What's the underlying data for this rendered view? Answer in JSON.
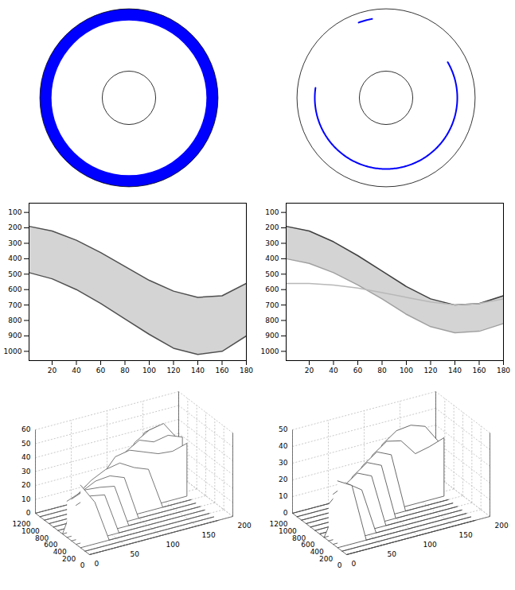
{
  "chart_data": [
    {
      "type": "rings",
      "tick_labels": false,
      "xlim": [
        -1.05,
        1.05
      ],
      "ylim": [
        -1.05,
        1.05
      ],
      "bands": [
        {
          "r_inner": 0.87,
          "r_outer": 1.0,
          "color": "#0000ff"
        }
      ],
      "circles": [
        {
          "r": 1.0,
          "color": "#000000"
        },
        {
          "r": 0.3,
          "color": "#000000"
        }
      ]
    },
    {
      "type": "rings",
      "tick_labels": false,
      "xlim": [
        -1.05,
        1.05
      ],
      "ylim": [
        -1.05,
        1.05
      ],
      "arcs": [
        {
          "r": 0.8,
          "start": 172,
          "end": 390,
          "color": "#0000ff"
        },
        {
          "r": 0.9,
          "start": 100,
          "end": 110,
          "color": "#0000ff"
        }
      ],
      "circles": [
        {
          "r": 1.0,
          "color": "#000000"
        },
        {
          "r": 0.3,
          "color": "#000000"
        }
      ]
    },
    {
      "type": "band",
      "color": "#d4d4d4",
      "xlim": [
        1,
        180
      ],
      "ylim": [
        1060,
        40
      ],
      "xticks": [
        20,
        40,
        60,
        80,
        100,
        120,
        140,
        160,
        180
      ],
      "yticks": [
        100,
        200,
        300,
        400,
        500,
        600,
        700,
        800,
        900,
        1000
      ],
      "x": [
        1,
        20,
        40,
        60,
        80,
        100,
        120,
        140,
        160,
        180
      ],
      "series": [
        {
          "color": "#505050",
          "values": [
            190,
            220,
            280,
            360,
            450,
            540,
            610,
            650,
            640,
            560
          ]
        },
        {
          "color": "#505050",
          "values": [
            490,
            530,
            600,
            690,
            790,
            890,
            980,
            1020,
            1000,
            900
          ]
        }
      ]
    },
    {
      "type": "band",
      "color": "#d4d4d4",
      "xlim": [
        1,
        180
      ],
      "ylim": [
        1060,
        40
      ],
      "xticks": [
        20,
        40,
        60,
        80,
        100,
        120,
        140,
        160,
        180
      ],
      "yticks": [
        100,
        200,
        300,
        400,
        500,
        600,
        700,
        800,
        900,
        1000
      ],
      "x": [
        1,
        20,
        40,
        60,
        80,
        100,
        120,
        140,
        160,
        180
      ],
      "series": [
        {
          "color": "#404040",
          "values": [
            190,
            220,
            290,
            380,
            480,
            580,
            660,
            700,
            690,
            640
          ]
        },
        {
          "color": "#a0a0a0",
          "values": [
            400,
            430,
            490,
            570,
            660,
            760,
            840,
            880,
            870,
            820
          ]
        },
        {
          "color": "#b8b8b8",
          "values": [
            560,
            560,
            570,
            590,
            620,
            650,
            680,
            700,
            690,
            660
          ]
        }
      ]
    },
    {
      "type": "surface",
      "grid": true,
      "color": "#555555",
      "xlim": [
        0,
        200
      ],
      "xticks": [
        0,
        50,
        100,
        150,
        200
      ],
      "ylim": [
        0,
        1200
      ],
      "yticks": [
        0,
        200,
        400,
        600,
        800,
        1000,
        1200
      ],
      "zlim": [
        0,
        60
      ],
      "zticks": [
        0,
        10,
        20,
        30,
        40,
        50,
        60
      ],
      "x": [
        0,
        20,
        40,
        60,
        80,
        100,
        120,
        140,
        160,
        180
      ],
      "y": [
        0,
        100,
        200,
        300,
        400,
        500,
        600,
        700,
        800,
        900,
        1000,
        1100,
        1200
      ],
      "z": [
        [
          0,
          0,
          0,
          0,
          0,
          0,
          0,
          0,
          0,
          0
        ],
        [
          0,
          0,
          0,
          0,
          0,
          0,
          0,
          0,
          0,
          0
        ],
        [
          45,
          30,
          0,
          0,
          0,
          0,
          0,
          0,
          0,
          0
        ],
        [
          28,
          32,
          30,
          0,
          0,
          0,
          0,
          0,
          0,
          0
        ],
        [
          30,
          34,
          33,
          31,
          0,
          0,
          0,
          0,
          0,
          0
        ],
        [
          26,
          30,
          35,
          36,
          32,
          0,
          0,
          0,
          0,
          0
        ],
        [
          0,
          25,
          33,
          38,
          40,
          34,
          30,
          0,
          0,
          0
        ],
        [
          0,
          0,
          22,
          30,
          42,
          44,
          40,
          36,
          35,
          38
        ],
        [
          0,
          0,
          0,
          20,
          28,
          40,
          46,
          42,
          44,
          40
        ],
        [
          0,
          0,
          0,
          0,
          18,
          26,
          42,
          48,
          50,
          36
        ],
        [
          0,
          0,
          0,
          0,
          0,
          15,
          30,
          44,
          46,
          0
        ],
        [
          0,
          0,
          0,
          0,
          0,
          0,
          0,
          0,
          0,
          0
        ],
        [
          0,
          0,
          0,
          0,
          0,
          0,
          0,
          0,
          0,
          0
        ]
      ]
    },
    {
      "type": "surface",
      "grid": true,
      "color": "#444444",
      "xlim": [
        0,
        200
      ],
      "xticks": [
        0,
        50,
        100,
        150,
        200
      ],
      "ylim": [
        0,
        1200
      ],
      "yticks": [
        0,
        200,
        400,
        600,
        800,
        1000,
        1200
      ],
      "zlim": [
        0,
        50
      ],
      "zticks": [
        0,
        10,
        20,
        30,
        40,
        50
      ],
      "x": [
        0,
        20,
        40,
        60,
        80,
        100,
        120,
        140,
        160,
        180
      ],
      "y": [
        0,
        100,
        200,
        300,
        400,
        500,
        600,
        700,
        800,
        900,
        1000,
        1100,
        1200
      ],
      "z": [
        [
          0,
          0,
          0,
          0,
          0,
          0,
          0,
          0,
          0,
          0
        ],
        [
          0,
          0,
          0,
          0,
          0,
          0,
          0,
          0,
          0,
          0
        ],
        [
          40,
          35,
          0,
          0,
          0,
          0,
          0,
          0,
          0,
          0
        ],
        [
          30,
          34,
          28,
          0,
          0,
          0,
          0,
          0,
          0,
          0
        ],
        [
          22,
          30,
          36,
          32,
          0,
          0,
          0,
          0,
          0,
          0
        ],
        [
          0,
          18,
          32,
          38,
          34,
          0,
          0,
          0,
          0,
          0
        ],
        [
          0,
          0,
          20,
          34,
          40,
          36,
          0,
          0,
          0,
          0
        ],
        [
          0,
          0,
          0,
          18,
          36,
          42,
          40,
          30,
          32,
          35
        ],
        [
          0,
          0,
          0,
          0,
          16,
          38,
          44,
          45,
          42,
          30
        ],
        [
          0,
          0,
          0,
          0,
          0,
          14,
          30,
          40,
          38,
          20
        ],
        [
          0,
          0,
          0,
          0,
          0,
          0,
          0,
          0,
          0,
          0
        ],
        [
          0,
          0,
          0,
          0,
          0,
          0,
          0,
          0,
          0,
          0
        ],
        [
          0,
          0,
          0,
          0,
          0,
          0,
          0,
          0,
          0,
          0
        ]
      ]
    }
  ]
}
